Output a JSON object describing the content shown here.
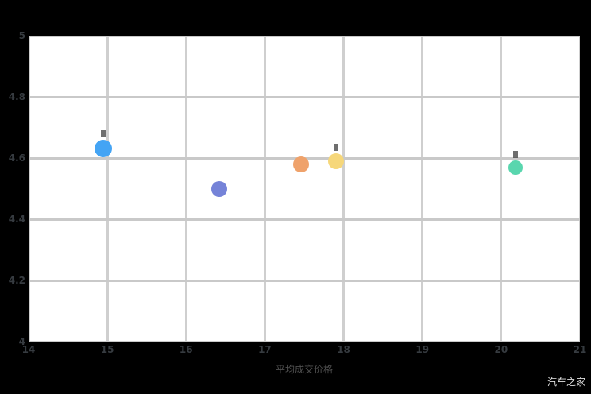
{
  "watermark": "汽车之家",
  "chart_data": {
    "type": "scatter",
    "title": "",
    "xlabel": "平均成交价格",
    "ylabel": "",
    "xlim": [
      14,
      21
    ],
    "ylim": [
      4,
      5
    ],
    "grid": true,
    "legend": "none",
    "plot_bg": "#ffffff",
    "page_bg": "#000000",
    "grid_color": "#cfcfcf",
    "tick_label_color": "#363b40",
    "x_ticks": [
      {
        "label": "14",
        "value": 14
      },
      {
        "label": "15",
        "value": 15
      },
      {
        "label": "16",
        "value": 16
      },
      {
        "label": "17",
        "value": 17
      },
      {
        "label": "18",
        "value": 18
      },
      {
        "label": "19",
        "value": 19
      },
      {
        "label": "20",
        "value": 20
      },
      {
        "label": "21",
        "value": 21
      }
    ],
    "y_ticks": [
      {
        "label": "5",
        "value": 5
      },
      {
        "label": "4.8",
        "value": 4.8
      },
      {
        "label": "4.6",
        "value": 4.6
      },
      {
        "label": "4.4",
        "value": 4.4
      },
      {
        "label": "4.2",
        "value": 4.2
      },
      {
        "label": "4",
        "value": 4
      }
    ],
    "points": [
      {
        "name": "bubble-blue",
        "x": 14.95,
        "y": 4.63,
        "r": 11,
        "color": "#44a4f4",
        "smudge": true
      },
      {
        "name": "bubble-purple",
        "x": 16.42,
        "y": 4.5,
        "r": 10,
        "color": "#7583d8",
        "smudge": false
      },
      {
        "name": "bubble-orange",
        "x": 17.46,
        "y": 4.58,
        "r": 10,
        "color": "#efa26b",
        "smudge": false
      },
      {
        "name": "bubble-yellow",
        "x": 17.9,
        "y": 4.59,
        "r": 10,
        "color": "#f6d77a",
        "smudge": true
      },
      {
        "name": "bubble-teal",
        "x": 20.18,
        "y": 4.57,
        "r": 9,
        "color": "#59d6ae",
        "smudge": true
      }
    ]
  }
}
